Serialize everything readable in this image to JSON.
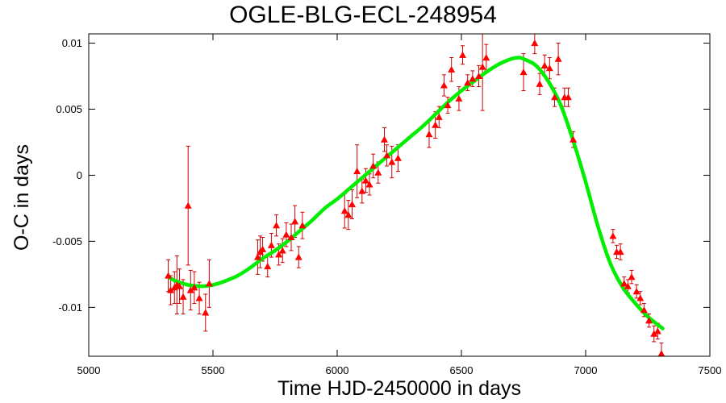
{
  "chart_data": {
    "type": "scatter",
    "title": "OGLE-BLG-ECL-248954",
    "xlabel": "Time HJD-2450000 in days",
    "ylabel": "O-C in days",
    "xlim": [
      5000,
      7500
    ],
    "ylim": [
      -0.0137,
      0.0107
    ],
    "xticks": [
      5000,
      5500,
      6000,
      6500,
      7000,
      7500
    ],
    "yticks": [
      -0.01,
      -0.005,
      0,
      0.005,
      0.01
    ],
    "ytick_labels": [
      "-0.01",
      "-0.005",
      "0",
      "0.005",
      "0.01"
    ],
    "grid": false,
    "legend": "none",
    "colors": {
      "points": "#ff0000",
      "errorbars": "#cc0000",
      "fit": "#00ee00",
      "axes": "#000000"
    },
    "series": [
      {
        "kind": "points_with_errorbars",
        "points": [
          {
            "x": 5320,
            "y": -0.0076,
            "err": 0.0012
          },
          {
            "x": 5330,
            "y": -0.0087,
            "err": 0.0011
          },
          {
            "x": 5345,
            "y": -0.0085,
            "err": 0.0012
          },
          {
            "x": 5355,
            "y": -0.0083,
            "err": 0.0022
          },
          {
            "x": 5365,
            "y": -0.0084,
            "err": 0.0013
          },
          {
            "x": 5380,
            "y": -0.0092,
            "err": 0.0013
          },
          {
            "x": 5400,
            "y": -0.0023,
            "err": 0.0045
          },
          {
            "x": 5410,
            "y": -0.0087,
            "err": 0.0015
          },
          {
            "x": 5425,
            "y": -0.0085,
            "err": 0.0012
          },
          {
            "x": 5445,
            "y": -0.0093,
            "err": 0.0012
          },
          {
            "x": 5470,
            "y": -0.0104,
            "err": 0.0014
          },
          {
            "x": 5485,
            "y": -0.0082,
            "err": 0.0018
          },
          {
            "x": 5680,
            "y": -0.0062,
            "err": 0.0013
          },
          {
            "x": 5690,
            "y": -0.0058,
            "err": 0.0012
          },
          {
            "x": 5700,
            "y": -0.0056,
            "err": 0.0009
          },
          {
            "x": 5720,
            "y": -0.0069,
            "err": 0.0008
          },
          {
            "x": 5735,
            "y": -0.0053,
            "err": 0.0009
          },
          {
            "x": 5755,
            "y": -0.0038,
            "err": 0.0008
          },
          {
            "x": 5765,
            "y": -0.006,
            "err": 0.0008
          },
          {
            "x": 5780,
            "y": -0.0057,
            "err": 0.0009
          },
          {
            "x": 5795,
            "y": -0.0045,
            "err": 0.0009
          },
          {
            "x": 5815,
            "y": -0.0047,
            "err": 0.001
          },
          {
            "x": 5830,
            "y": -0.0035,
            "err": 0.0012
          },
          {
            "x": 5845,
            "y": -0.0062,
            "err": 0.0008
          },
          {
            "x": 5860,
            "y": -0.0038,
            "err": 0.001
          },
          {
            "x": 6030,
            "y": -0.0027,
            "err": 0.0013
          },
          {
            "x": 6045,
            "y": -0.003,
            "err": 0.0011
          },
          {
            "x": 6060,
            "y": -0.0022,
            "err": 0.0011
          },
          {
            "x": 6080,
            "y": 0.0003,
            "err": 0.002
          },
          {
            "x": 6100,
            "y": -0.0012,
            "err": 0.0009
          },
          {
            "x": 6115,
            "y": -0.0004,
            "err": 0.0009
          },
          {
            "x": 6130,
            "y": -0.0007,
            "err": 0.0008
          },
          {
            "x": 6145,
            "y": 0.0007,
            "err": 0.0009
          },
          {
            "x": 6165,
            "y": 0.0002,
            "err": 0.0008
          },
          {
            "x": 6190,
            "y": 0.0027,
            "err": 0.0009
          },
          {
            "x": 6200,
            "y": 0.0015,
            "err": 0.0008
          },
          {
            "x": 6220,
            "y": 0.001,
            "err": 0.0012
          },
          {
            "x": 6245,
            "y": 0.0013,
            "err": 0.001
          },
          {
            "x": 6370,
            "y": 0.0031,
            "err": 0.001
          },
          {
            "x": 6395,
            "y": 0.0038,
            "err": 0.001
          },
          {
            "x": 6410,
            "y": 0.0044,
            "err": 0.0008
          },
          {
            "x": 6430,
            "y": 0.0068,
            "err": 0.0008
          },
          {
            "x": 6445,
            "y": 0.0053,
            "err": 0.0006
          },
          {
            "x": 6460,
            "y": 0.008,
            "err": 0.0009
          },
          {
            "x": 6490,
            "y": 0.0058,
            "err": 0.0009
          },
          {
            "x": 6505,
            "y": 0.0091,
            "err": 0.0007
          },
          {
            "x": 6525,
            "y": 0.007,
            "err": 0.0006
          },
          {
            "x": 6545,
            "y": 0.0073,
            "err": 0.0006
          },
          {
            "x": 6570,
            "y": 0.0075,
            "err": 0.0008
          },
          {
            "x": 6585,
            "y": 0.0082,
            "err": 0.0033
          },
          {
            "x": 6600,
            "y": 0.0089,
            "err": 0.001
          },
          {
            "x": 6750,
            "y": 0.0078,
            "err": 0.0014
          },
          {
            "x": 6795,
            "y": 0.01,
            "err": 0.0008
          },
          {
            "x": 6815,
            "y": 0.0069,
            "err": 0.0008
          },
          {
            "x": 6835,
            "y": 0.0083,
            "err": 0.0008
          },
          {
            "x": 6855,
            "y": 0.0081,
            "err": 0.0008
          },
          {
            "x": 6875,
            "y": 0.0059,
            "err": 0.0007
          },
          {
            "x": 6890,
            "y": 0.0088,
            "err": 0.0012
          },
          {
            "x": 6915,
            "y": 0.0059,
            "err": 0.0007
          },
          {
            "x": 6930,
            "y": 0.0059,
            "err": 0.0007
          },
          {
            "x": 6950,
            "y": 0.0027,
            "err": 0.0006
          },
          {
            "x": 7110,
            "y": -0.0046,
            "err": 0.0005
          },
          {
            "x": 7125,
            "y": -0.0058,
            "err": 0.0005
          },
          {
            "x": 7140,
            "y": -0.0058,
            "err": 0.0006
          },
          {
            "x": 7155,
            "y": -0.0082,
            "err": 0.0005
          },
          {
            "x": 7170,
            "y": -0.0084,
            "err": 0.0005
          },
          {
            "x": 7185,
            "y": -0.0077,
            "err": 0.0005
          },
          {
            "x": 7205,
            "y": -0.0088,
            "err": 0.0005
          },
          {
            "x": 7220,
            "y": -0.0093,
            "err": 0.0005
          },
          {
            "x": 7235,
            "y": -0.0102,
            "err": 0.0005
          },
          {
            "x": 7255,
            "y": -0.011,
            "err": 0.0005
          },
          {
            "x": 7275,
            "y": -0.012,
            "err": 0.0006
          },
          {
            "x": 7290,
            "y": -0.0118,
            "err": 0.0006
          },
          {
            "x": 7305,
            "y": -0.0135,
            "err": 0.0008
          }
        ]
      },
      {
        "kind": "fit_curve",
        "x": [
          5320,
          5350,
          5400,
          5450,
          5500,
          5550,
          5600,
          5650,
          5700,
          5750,
          5800,
          5850,
          5900,
          5950,
          6000,
          6050,
          6100,
          6150,
          6200,
          6250,
          6300,
          6350,
          6400,
          6450,
          6500,
          6550,
          6600,
          6650,
          6700,
          6730,
          6750,
          6800,
          6850,
          6900,
          6950,
          7000,
          7050,
          7100,
          7150,
          7200,
          7250,
          7310
        ],
        "y": [
          -0.0077,
          -0.008,
          -0.0083,
          -0.0084,
          -0.0083,
          -0.008,
          -0.0076,
          -0.007,
          -0.0063,
          -0.0057,
          -0.005,
          -0.0042,
          -0.0034,
          -0.0025,
          -0.0018,
          -0.001,
          -0.0002,
          0.0006,
          0.0014,
          0.0022,
          0.003,
          0.0038,
          0.0047,
          0.0056,
          0.0064,
          0.0071,
          0.0078,
          0.0084,
          0.0088,
          0.0089,
          0.0088,
          0.0083,
          0.0071,
          0.0053,
          0.0026,
          -0.0005,
          -0.0039,
          -0.0067,
          -0.0085,
          -0.0097,
          -0.0107,
          -0.0116
        ]
      }
    ]
  }
}
